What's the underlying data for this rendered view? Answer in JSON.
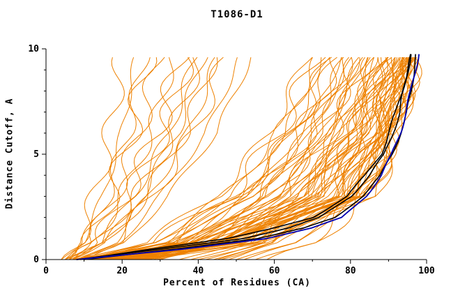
{
  "chart_data": {
    "type": "line",
    "title": "T1086-D1",
    "xlabel": "Percent of Residues (CA)",
    "ylabel": "Distance Cutoff, A",
    "xlim": [
      0,
      100
    ],
    "ylim": [
      0,
      10
    ],
    "xticks": {
      "major": [
        0,
        20,
        40,
        60,
        80,
        100
      ],
      "minor_step": 10,
      "labels": [
        "0",
        "20",
        "40",
        "60",
        "80",
        "100"
      ]
    },
    "yticks": {
      "major": [
        0,
        5,
        10
      ],
      "minor_step": 1,
      "labels": [
        "0",
        "5",
        "10"
      ]
    },
    "grid": false,
    "legend": "none",
    "colors": {
      "predictions": "#ee8100",
      "reference": "#000000",
      "highlight": "#0000b3"
    },
    "anchor_y_orange": [
      0,
      0.8,
      3,
      6,
      10
    ],
    "anchor_y_detail": [
      0,
      0.5,
      1,
      1.5,
      2,
      3,
      4,
      5,
      6,
      7,
      8,
      9,
      10
    ],
    "orange_curves": [
      [
        12,
        78,
        95
      ],
      [
        15,
        80,
        96
      ],
      [
        10,
        72,
        93
      ],
      [
        18,
        82,
        97
      ],
      [
        14,
        75,
        94
      ],
      [
        20,
        84,
        97
      ],
      [
        9,
        70,
        92
      ],
      [
        16,
        79,
        96
      ],
      [
        22,
        85,
        98
      ],
      [
        11,
        74,
        95
      ],
      [
        13,
        77,
        96
      ],
      [
        17,
        81,
        97
      ],
      [
        19,
        76,
        93
      ],
      [
        8,
        68,
        91
      ],
      [
        21,
        83,
        96
      ],
      [
        25,
        86,
        98
      ],
      [
        12,
        73,
        94
      ],
      [
        15,
        78,
        97
      ],
      [
        10,
        69,
        90
      ],
      [
        23,
        85,
        97
      ],
      [
        14,
        80,
        98
      ],
      [
        18,
        77,
        95
      ],
      [
        26,
        87,
        98
      ],
      [
        11,
        71,
        92
      ],
      [
        16,
        74,
        93
      ],
      [
        20,
        81,
        95
      ],
      [
        13,
        79,
        97
      ],
      [
        24,
        84,
        96
      ],
      [
        9,
        66,
        89
      ],
      [
        17,
        83,
        98
      ],
      [
        8,
        55,
        82
      ],
      [
        12,
        60,
        85
      ],
      [
        15,
        58,
        80
      ],
      [
        10,
        50,
        78
      ],
      [
        20,
        62,
        86
      ],
      [
        25,
        65,
        88
      ],
      [
        14,
        52,
        75
      ],
      [
        18,
        57,
        83
      ],
      [
        22,
        63,
        87
      ],
      [
        9,
        48,
        72
      ],
      [
        11,
        53,
        79
      ],
      [
        16,
        59,
        84
      ],
      [
        28,
        66,
        89
      ],
      [
        30,
        68,
        90
      ],
      [
        13,
        51,
        76
      ],
      [
        19,
        61,
        85
      ],
      [
        24,
        64,
        87
      ],
      [
        7,
        45,
        70
      ],
      [
        17,
        56,
        81
      ],
      [
        21,
        60,
        83
      ],
      [
        26,
        67,
        90
      ],
      [
        10,
        49,
        74
      ],
      [
        15,
        55,
        80
      ],
      [
        29,
        70,
        91
      ],
      [
        12,
        54,
        78
      ],
      [
        23,
        62,
        84
      ],
      [
        27,
        69,
        92
      ],
      [
        8,
        47,
        73
      ],
      [
        5,
        18,
        30
      ],
      [
        6,
        22,
        38
      ],
      [
        4,
        15,
        24
      ],
      [
        7,
        25,
        42
      ],
      [
        5,
        20,
        34
      ],
      [
        8,
        28,
        48
      ],
      [
        6,
        17,
        27
      ],
      [
        9,
        30,
        52
      ],
      [
        5,
        23,
        40
      ],
      [
        7,
        26,
        45
      ],
      [
        4,
        13,
        20
      ],
      [
        6,
        21,
        36
      ],
      [
        10,
        32,
        55
      ],
      [
        8,
        27,
        46
      ],
      [
        5,
        16,
        26
      ],
      [
        7,
        24,
        41
      ],
      [
        40,
        70,
        92
      ],
      [
        45,
        75,
        95
      ],
      [
        50,
        80,
        96
      ],
      [
        38,
        68,
        90
      ],
      [
        48,
        78,
        94
      ],
      [
        55,
        82,
        97
      ],
      [
        42,
        72,
        93
      ],
      [
        52,
        81,
        96
      ],
      [
        35,
        66,
        88
      ],
      [
        46,
        76,
        95
      ],
      [
        58,
        84,
        98
      ],
      [
        44,
        74,
        94
      ]
    ],
    "black_curves": [
      [
        8,
        30,
        52,
        64,
        72,
        80,
        85,
        89,
        91,
        93,
        94,
        95,
        96
      ],
      [
        10,
        34,
        56,
        68,
        76,
        83,
        88,
        91,
        93,
        95,
        96,
        96.5,
        97.5
      ],
      [
        9,
        28,
        48,
        60,
        70,
        79,
        84,
        88,
        90,
        92,
        93.5,
        95,
        96.5
      ]
    ],
    "blue_curve": [
      8,
      36,
      58,
      70,
      78,
      84,
      88,
      91,
      93,
      94.5,
      96,
      97,
      98
    ]
  }
}
